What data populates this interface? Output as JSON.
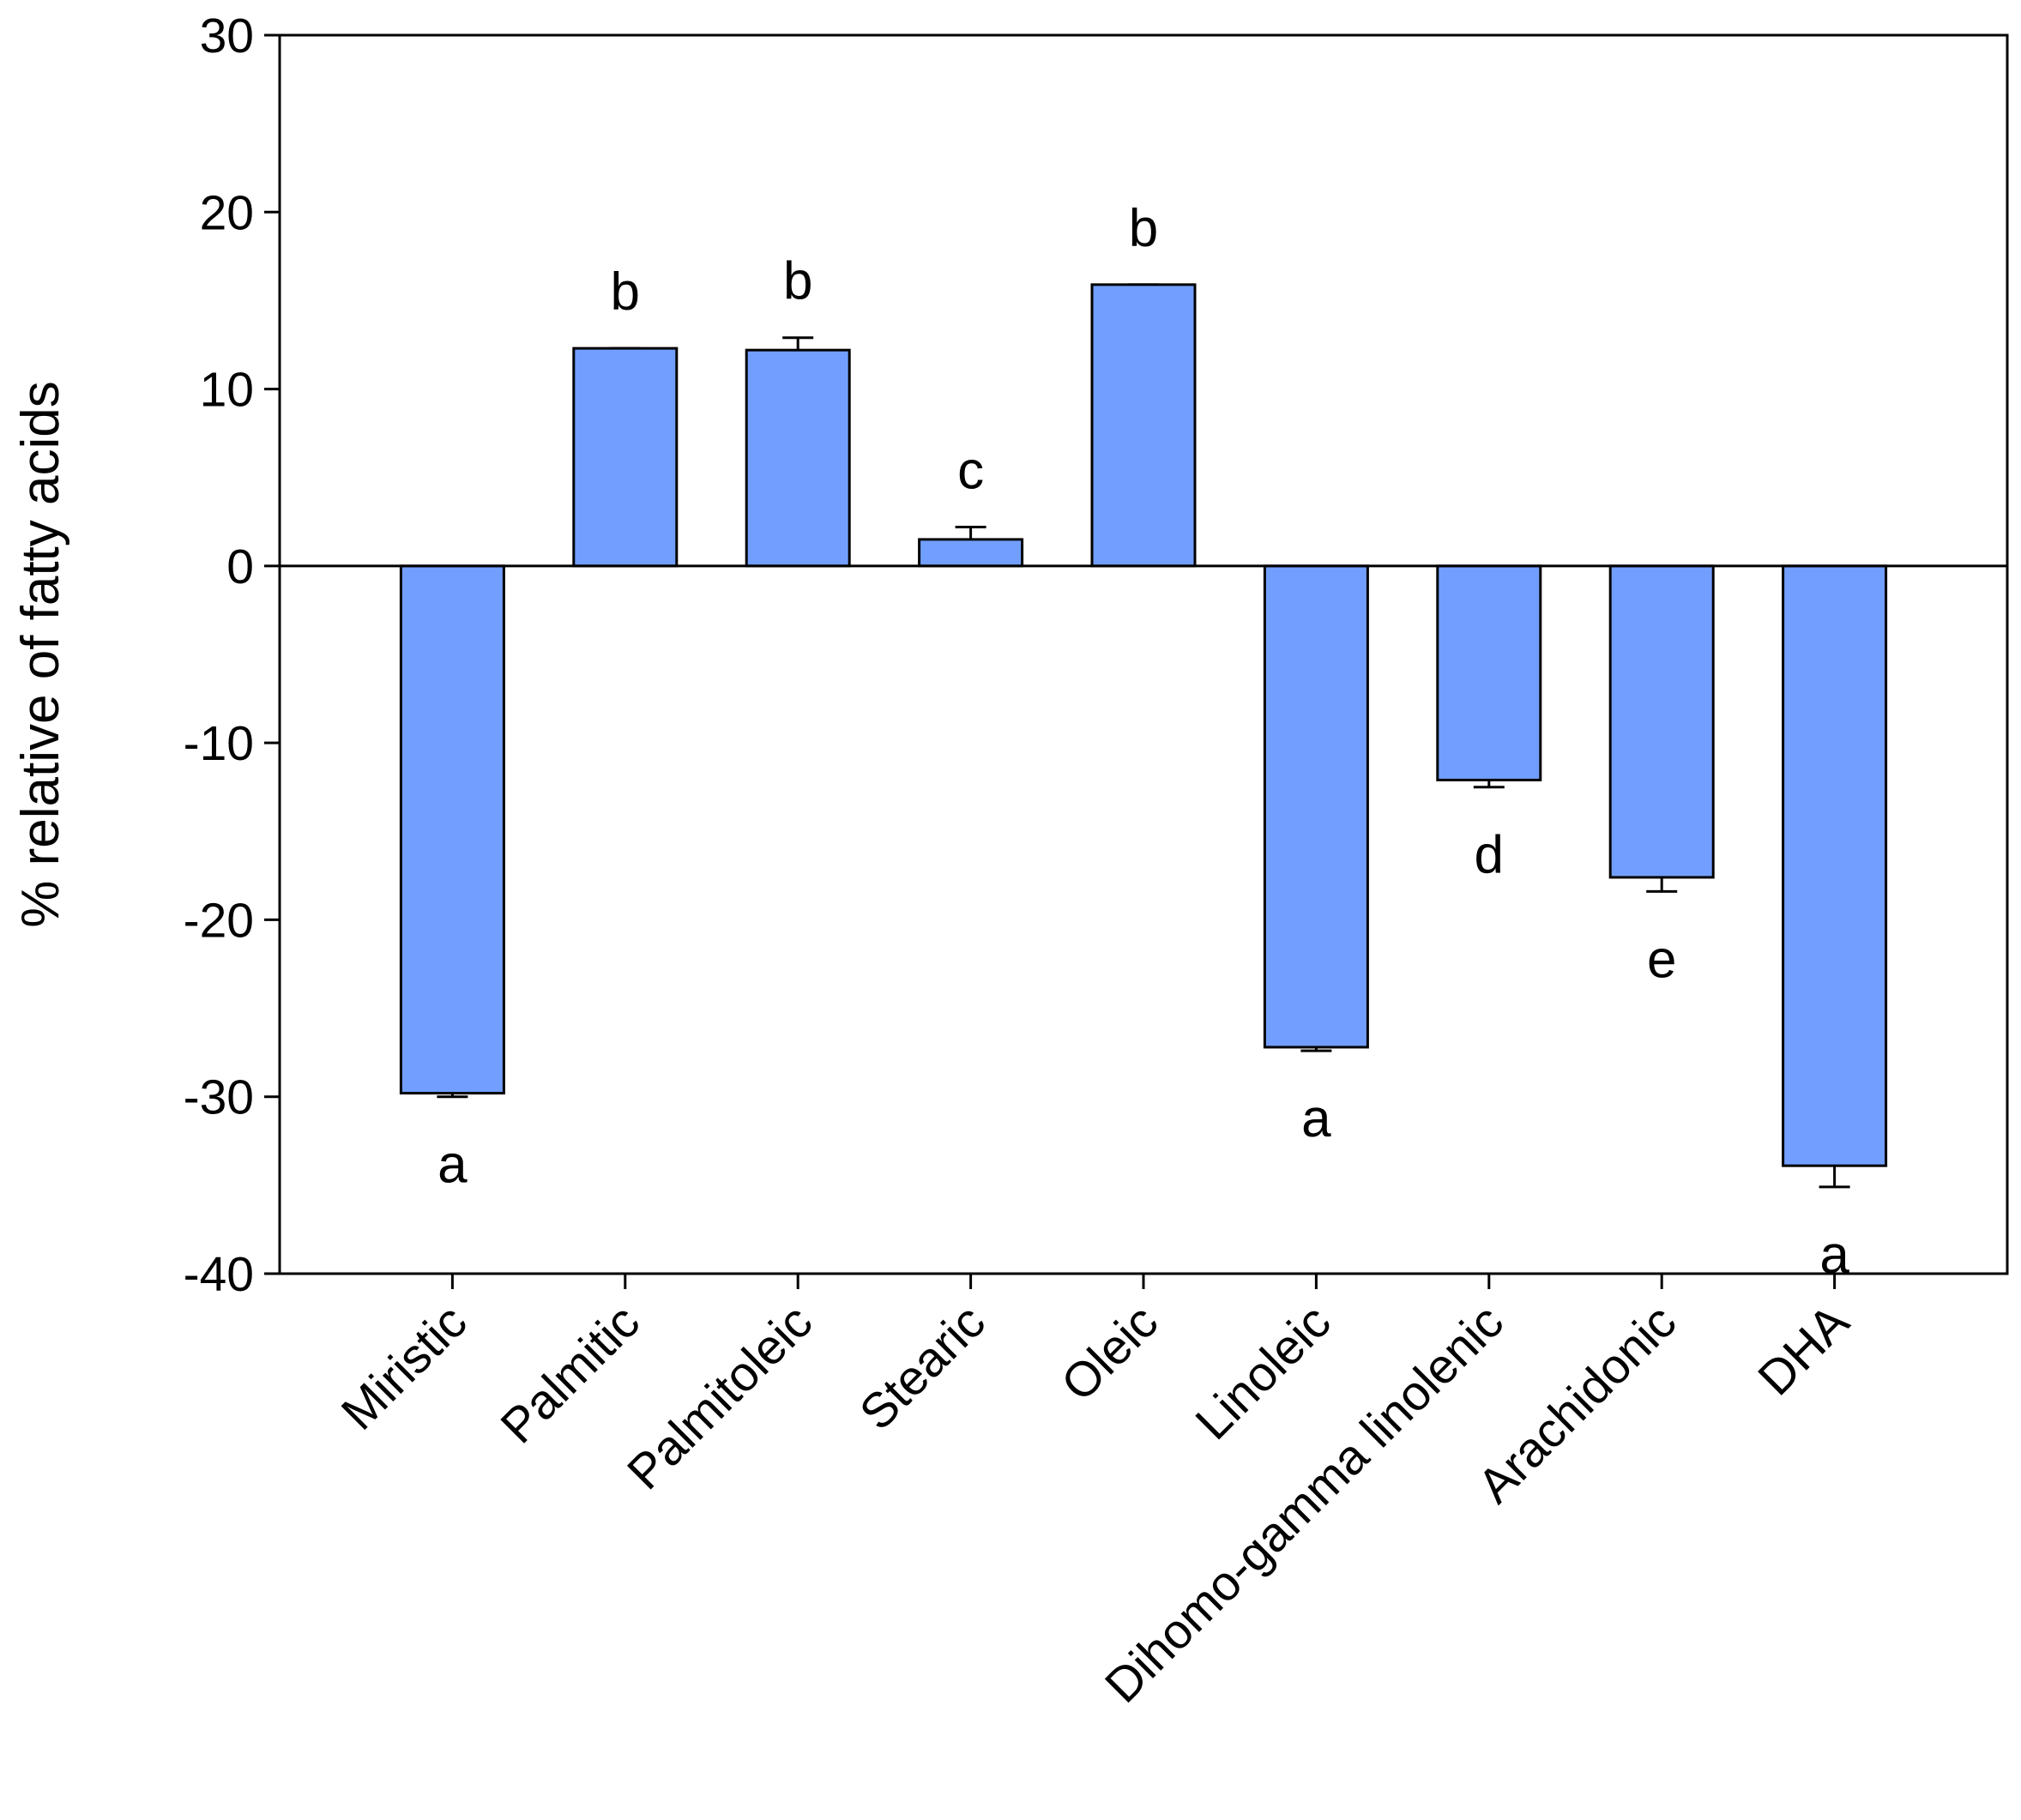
{
  "chart_data": {
    "type": "bar",
    "y_label": "% relative of fatty acids",
    "categories": [
      "Miristic",
      "Palmitic",
      "Palmitoleic",
      "Stearic",
      "Oleic",
      "Linoleic",
      "Dihomo-gamma linolenic",
      "Arachidonic",
      "DHA"
    ],
    "values": [
      -29.8,
      12.3,
      12.2,
      1.5,
      15.9,
      -27.2,
      -12.1,
      -17.6,
      -33.9
    ],
    "errors": [
      0.2,
      0,
      0.7,
      0.7,
      0,
      0.2,
      0.4,
      0.8,
      1.2
    ],
    "significance_letters": [
      "a",
      "b",
      "b",
      "c",
      "b",
      "a",
      "d",
      "e",
      "a"
    ],
    "color": "#729fff",
    "ylim": [
      -40,
      30
    ],
    "yticks": [
      -40,
      -30,
      -20,
      -10,
      0,
      10,
      20,
      30
    ]
  }
}
